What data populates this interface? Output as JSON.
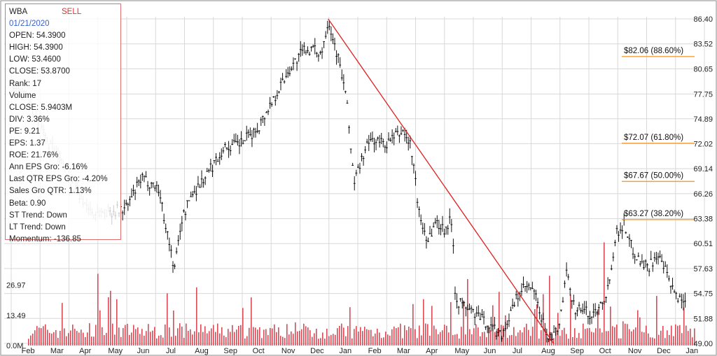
{
  "info": {
    "symbol": "WBA",
    "signal": "SELL",
    "date": "01/21/2020",
    "lines": [
      "OPEN: 54.3900",
      "HIGH: 54.3900",
      "LOW: 53.4600",
      "CLOSE: 53.8700",
      "Rank: 17",
      "Volume",
      "CLOSE: 5.9403M",
      "DIV: 3.36%",
      "PE: 9.21",
      "EPS: 1.37",
      "ROE: 21.76%",
      "Ann EPS Gro: -6.16%",
      "Last QTR EPS Gro: -4.20%",
      "Sales Gro QTR: 1.13%",
      "Beta: 0.90",
      "ST Trend: Down",
      "LT Trend: Down",
      "Momentum: -136.85"
    ]
  },
  "colors": {
    "candle": "#111111",
    "candle_faded": "#b8b8b8",
    "volume": "#d84a55",
    "trendline": "#e02020",
    "fib_line": "#f0a040",
    "grid": "#d8d8d8"
  },
  "chart_data": {
    "type": "candlestick",
    "symbol": "WBA",
    "x_ticks": [
      "Feb",
      "Mar",
      "Apr",
      "May",
      "Jun",
      "Jul",
      "Aug",
      "Sep",
      "Oct",
      "Nov",
      "Dec",
      "Jan",
      "Feb",
      "Mar",
      "Apr",
      "May",
      "Jun",
      "Jul",
      "Aug",
      "Sep",
      "Oct",
      "Nov",
      "Dec",
      "Jan"
    ],
    "price_axis": {
      "ticks": [
        "86.40",
        "83.52",
        "80.65",
        "77.75",
        "74.89",
        "72.02",
        "69.14",
        "66.26",
        "63.38",
        "60.51",
        "57.63",
        "54.75",
        "51.88",
        "49.00"
      ],
      "range": [
        49.0,
        86.4
      ]
    },
    "volume_axis": {
      "ticks": [
        "26.97",
        "13.49",
        "0.0M"
      ],
      "range": [
        0,
        40
      ]
    },
    "price_path": [
      [
        0,
        78.6
      ],
      [
        1,
        77.5
      ],
      [
        2,
        73.0
      ],
      [
        3,
        70.0
      ],
      [
        4,
        66.5
      ],
      [
        5,
        64.0
      ],
      [
        6,
        64.2
      ],
      [
        7,
        64.5
      ],
      [
        8,
        68.0
      ],
      [
        9,
        67.0
      ],
      [
        10,
        57.5
      ],
      [
        10.4,
        63.0
      ],
      [
        11,
        66.0
      ],
      [
        12,
        68.5
      ],
      [
        13,
        71.5
      ],
      [
        14,
        72.0
      ],
      [
        15,
        73.5
      ],
      [
        16,
        77.0
      ],
      [
        17,
        80.5
      ],
      [
        18,
        83.0
      ],
      [
        19,
        82.5
      ],
      [
        19.4,
        86.4
      ],
      [
        20,
        82.0
      ],
      [
        20.5,
        77.5
      ],
      [
        21,
        67.5
      ],
      [
        21.5,
        70.5
      ],
      [
        22,
        72.5
      ],
      [
        23,
        72.0
      ],
      [
        23.5,
        72.8
      ],
      [
        24,
        73.5
      ],
      [
        24.5,
        71.5
      ],
      [
        25,
        63.5
      ],
      [
        25.5,
        61.0
      ],
      [
        26,
        63.0
      ],
      [
        26.5,
        62.2
      ],
      [
        27,
        63.3
      ],
      [
        27.2,
        54.0
      ],
      [
        28,
        53.0
      ],
      [
        29,
        51.5
      ],
      [
        30,
        50.0
      ],
      [
        30.5,
        52.0
      ],
      [
        31,
        54.5
      ],
      [
        31.5,
        55.5
      ],
      [
        32,
        55.0
      ],
      [
        32.5,
        51.5
      ],
      [
        33,
        49.5
      ],
      [
        33.5,
        50.5
      ],
      [
        34,
        57.0
      ],
      [
        34.5,
        53.0
      ],
      [
        35,
        53.0
      ],
      [
        35.5,
        52.0
      ],
      [
        36,
        53.5
      ],
      [
        36.5,
        55.0
      ],
      [
        37,
        61.5
      ],
      [
        37.5,
        62.8
      ],
      [
        38,
        60.0
      ],
      [
        38.5,
        58.5
      ],
      [
        39,
        57.8
      ],
      [
        39.5,
        59.2
      ],
      [
        40,
        57.5
      ],
      [
        40.5,
        55.0
      ],
      [
        41,
        54.0
      ],
      [
        41.3,
        53.9
      ]
    ],
    "faded_until": 6,
    "trendline": {
      "from": [
        19.4,
        86.4
      ],
      "to": [
        33.2,
        49.0
      ]
    },
    "fib_levels": [
      {
        "label": "$82.06 (88.60%)",
        "price": 82.06
      },
      {
        "label": "$72.07 (61.80%)",
        "price": 72.07
      },
      {
        "label": "$67.67 (50.00%)",
        "price": 67.67
      },
      {
        "label": "$63.27 (38.20%)",
        "price": 63.27
      }
    ]
  }
}
